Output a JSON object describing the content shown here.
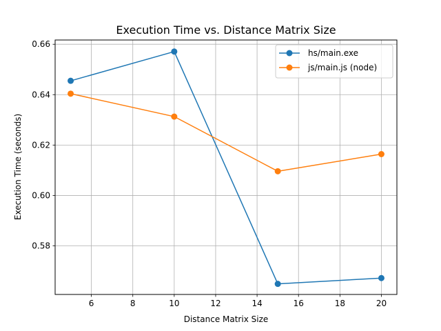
{
  "chart_data": {
    "type": "line",
    "title": "Execution Time vs. Distance Matrix Size",
    "xlabel": "Distance Matrix Size",
    "ylabel": "Execution Time (seconds)",
    "xlim": [
      4.25,
      20.75
    ],
    "ylim": [
      0.5607,
      0.6617
    ],
    "x_ticks": [
      6,
      8,
      10,
      12,
      14,
      16,
      18,
      20
    ],
    "x_tick_labels": [
      "6",
      "8",
      "10",
      "12",
      "14",
      "16",
      "18",
      "20"
    ],
    "y_ticks": [
      0.58,
      0.6,
      0.62,
      0.64,
      0.66
    ],
    "y_tick_labels": [
      "0.58",
      "0.60",
      "0.62",
      "0.64",
      "0.66"
    ],
    "grid": true,
    "legend_position": "top-right",
    "series": [
      {
        "name": "hs/main.exe",
        "color": "#1f77b4",
        "x": [
          5,
          10,
          15,
          20
        ],
        "values": [
          0.6455,
          0.6571,
          0.5649,
          0.5672
        ]
      },
      {
        "name": "js/main.js (node)",
        "color": "#ff7f0e",
        "x": [
          5,
          10,
          15,
          20
        ],
        "values": [
          0.6404,
          0.6313,
          0.6096,
          0.6164
        ]
      }
    ]
  }
}
